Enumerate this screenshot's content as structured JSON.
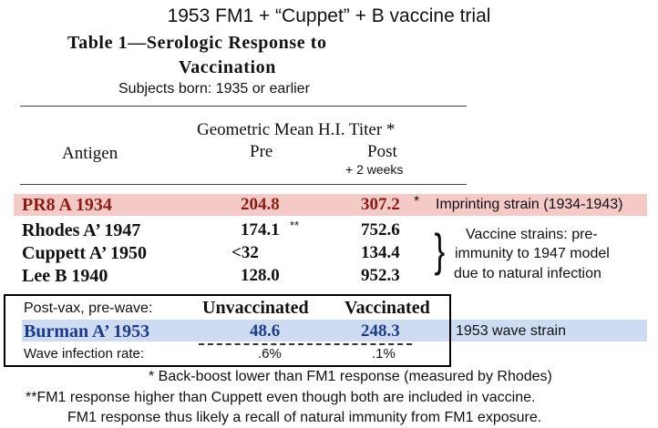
{
  "top_title": "1953 FM1 + “Cuppet” + B vaccine trial",
  "table_title_line1": "Table 1—Serologic Response to",
  "table_title_line2": "Vaccination",
  "subjects_note": "Subjects born: 1935 or earlier",
  "headers": {
    "antigen": "Antigen",
    "gmt": "Geometric Mean H.I. Titer *",
    "pre": "Pre",
    "post": "Post",
    "post_sub": "+ 2 weeks"
  },
  "rows": [
    {
      "antigen": "PR8 A 1934",
      "pre": "204.8",
      "post": "307.2",
      "post_mark": "*",
      "note": "Imprinting strain (1934-1943)"
    },
    {
      "antigen": "Rhodes A’ 1947",
      "pre": "174.1",
      "pre_mark": "**",
      "post": "752.6"
    },
    {
      "antigen": "Cuppett A’ 1950",
      "pre": "<32",
      "post": "134.4"
    },
    {
      "antigen": "Lee B 1940",
      "pre": "128.0",
      "post": "952.3"
    }
  ],
  "vaccine_strains_note": [
    "Vaccine strains: pre-",
    "immunity to 1947 model",
    "due to natural infection"
  ],
  "brace": "}",
  "post_vax": {
    "label": "Post-vax, pre-wave:",
    "col_unvax": "Unvaccinated",
    "col_vax": "Vaccinated",
    "strain": "Burman A’ 1953",
    "unvax_val": "48.6",
    "vax_val": "248.3",
    "wave_label": "Wave infection rate:",
    "unvax_rate": ".6%",
    "vax_rate": ".1%",
    "strain_note": "1953 wave strain"
  },
  "footnotes": [
    "* Back-boost lower than FM1 response (measured by Rhodes)",
    "**FM1 response higher than Cuppett even though both are included in vaccine.",
    "FM1 response thus likely a recall of natural immunity from FM1 exposure."
  ],
  "colors": {
    "pink_band": "#f4c9c6",
    "blue_band": "#cddcf3",
    "pink_text": "#8c1d12",
    "blue_text": "#1c3b87"
  }
}
